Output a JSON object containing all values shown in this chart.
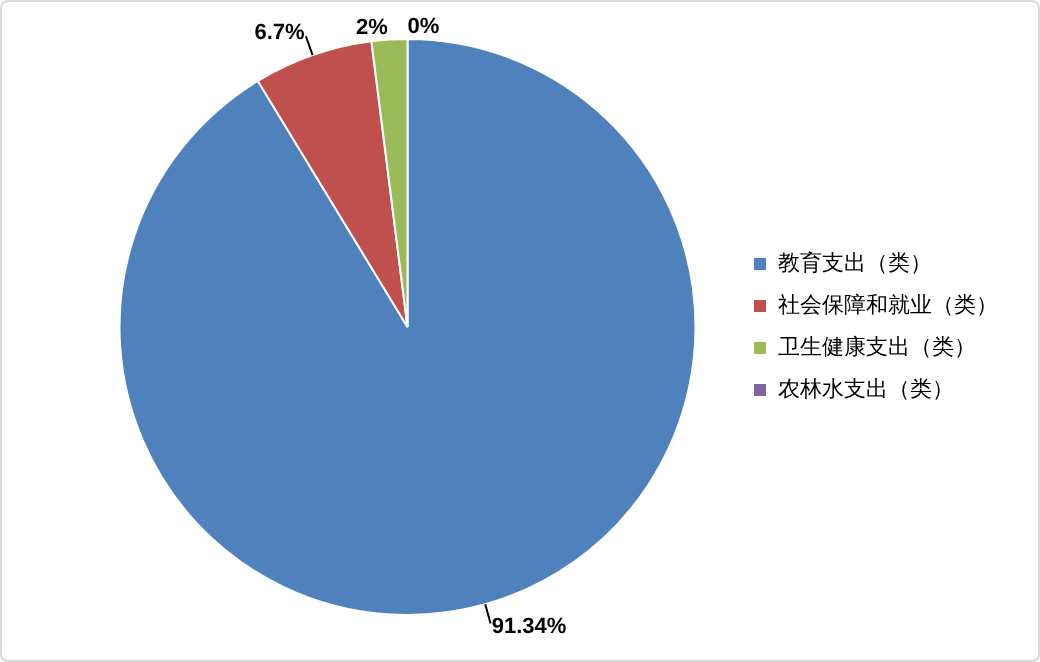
{
  "chart_data": {
    "type": "pie",
    "categories": [
      "教育支出（类）",
      "社会保障和就业（类）",
      "卫生健康支出（类）",
      "农林水支出（类）"
    ],
    "values": [
      91.34,
      6.7,
      2,
      0
    ],
    "colors": [
      "#4f81bd",
      "#c0504d",
      "#9bbb59",
      "#8064a2"
    ],
    "value_labels": [
      "91.34%",
      "6.7%",
      "2%",
      "0%"
    ],
    "legend": "right"
  }
}
